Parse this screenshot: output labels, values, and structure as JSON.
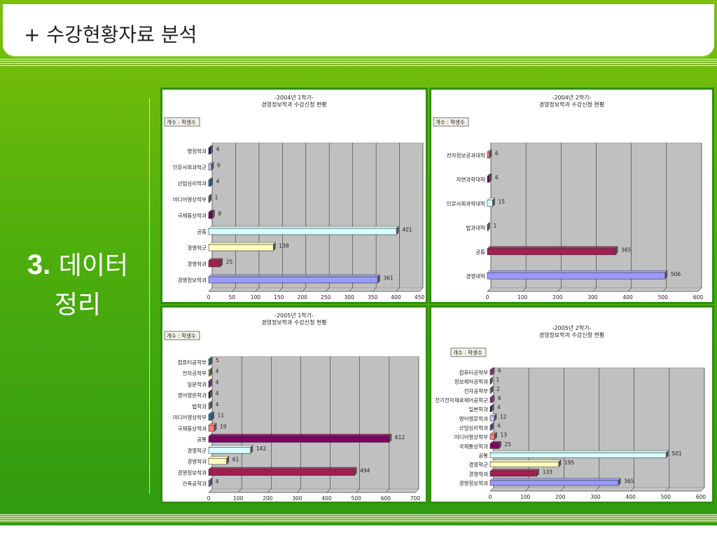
{
  "slide": {
    "title": "+ 수강현황자료 분석",
    "side_number": "3.",
    "side_text_1": "데이터",
    "side_text_2": "정리"
  },
  "chart_data": [
    {
      "type": "bar",
      "title": "-2004년 1학기-",
      "subtitle": "경영정보학과 수강신청 현황",
      "field_label": "개수 : 학생수",
      "categories": [
        "행정학과",
        "인문사회과학군",
        "산업심리학과",
        "미디어영상학부",
        "국제통상학과",
        "공통",
        "경영학군",
        "경영학과",
        "경영정보학과"
      ],
      "values": [
        4,
        6,
        4,
        1,
        8,
        401,
        138,
        25,
        361
      ],
      "colors": [
        "#1a1a80",
        "#c8c8ff",
        "#2a6aa0",
        "#c08080",
        "#700050",
        "#d8ffff",
        "#ffffc0",
        "#a02050",
        "#9a9aff"
      ],
      "xlim": [
        0,
        450
      ],
      "xticks": [
        0,
        50,
        100,
        150,
        200,
        250,
        300,
        350,
        400,
        450
      ]
    },
    {
      "type": "bar",
      "title": "-2004년 2학기-",
      "subtitle": "경영정보학과 수강신청 현황",
      "field_label": "개수 : 학생수",
      "categories": [
        "전자정보공과대학",
        "자연과학대학",
        "인문사회과학대학",
        "법과대학",
        "공통",
        "경영대학"
      ],
      "values": [
        6,
        6,
        15,
        1,
        365,
        506
      ],
      "colors": [
        "#ff8080",
        "#800050",
        "#d8ffff",
        "#ffffc0",
        "#a02050",
        "#9a9aff"
      ],
      "xlim": [
        0,
        600
      ],
      "xticks": [
        0,
        100,
        200,
        300,
        400,
        500,
        600
      ]
    },
    {
      "type": "bar",
      "title": "-2005년 1학기-",
      "subtitle": "경영정보학과 수강신청 현황",
      "field_label": "개수 : 학생수",
      "categories": [
        "컴퓨터공학부",
        "전자공학부",
        "일본학과",
        "영어영문학과",
        "법학과",
        "미디어영상학부",
        "국제통상학과",
        "공통",
        "경영학군",
        "경영학과",
        "경영정보학과",
        "건축공학과"
      ],
      "values": [
        5,
        4,
        4,
        4,
        4,
        11,
        19,
        612,
        142,
        61,
        494,
        4
      ],
      "colors": [
        "#00a0a0",
        "#e0e020",
        "#a020a0",
        "#202020",
        "#a0a0a0",
        "#2a6aa0",
        "#ff8080",
        "#800060",
        "#d8ffff",
        "#ffffc0",
        "#a02050",
        "#9a9aff"
      ],
      "xlim": [
        0,
        700
      ],
      "xticks": [
        0,
        100,
        200,
        300,
        400,
        500,
        600,
        700
      ]
    },
    {
      "type": "bar",
      "title": "-2005년 2학기-",
      "subtitle": "경영정보학과 수강신청 현황",
      "field_label": "개수 : 학생수",
      "categories": [
        "컴퓨터공학부",
        "정보제어공학과",
        "전자공학부",
        "전기전자제료제어공학군",
        "일본학과",
        "영어영문학과",
        "산업심리학과",
        "미디어영상학부",
        "국제통상학과",
        "공통",
        "경영학군",
        "경영학과",
        "경영정보학과"
      ],
      "values": [
        6,
        1,
        2,
        6,
        4,
        12,
        4,
        13,
        25,
        501,
        195,
        133,
        365
      ],
      "colors": [
        "#a020a0",
        "#00a0a0",
        "#e0e020",
        "#a020a0",
        "#202020",
        "#c8c8ff",
        "#2a6aa0",
        "#ff8080",
        "#800060",
        "#d8ffff",
        "#ffffc0",
        "#a02050",
        "#9a9aff"
      ],
      "xlim": [
        0,
        600
      ],
      "xticks": [
        0,
        100,
        200,
        300,
        400,
        500,
        600
      ]
    }
  ]
}
